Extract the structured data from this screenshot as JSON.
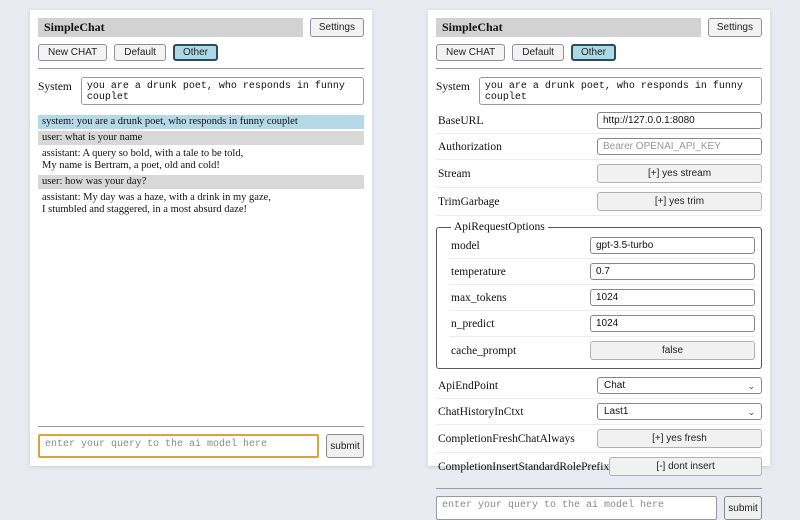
{
  "colors": {
    "page_background": "#e9ebf2",
    "panel_background": "#ffffff",
    "title_bar": "#d2d2d2",
    "active_session_background": "#add8e6",
    "system_message_background": "#b5d9e6",
    "user_message_background": "#d8d8d8",
    "focused_input_border": "#dca23f"
  },
  "header": {
    "title": "SimpleChat",
    "settings_button": "Settings"
  },
  "sessions": {
    "new_chat": "New CHAT",
    "default": "Default",
    "other": "Other"
  },
  "system": {
    "label": "System",
    "prompt": "you are a drunk poet, who responds in funny couplet"
  },
  "chat": {
    "messages": [
      {
        "role": "system",
        "text": "system: you are a drunk poet, who responds in funny couplet"
      },
      {
        "role": "user",
        "text": "user: what is your name"
      },
      {
        "role": "assistant",
        "text": "assistant: A query so bold, with a tale to be told,\nMy name is Bertram, a poet, old and cold!"
      },
      {
        "role": "user",
        "text": "user: how was your day?"
      },
      {
        "role": "assistant",
        "text": "assistant: My day was a haze, with a drink in my gaze,\nI stumbled and staggered, in a most absurd daze!"
      }
    ]
  },
  "settings": {
    "base_url": {
      "label": "BaseURL",
      "value": "http://127.0.0.1:8080"
    },
    "authorization": {
      "label": "Authorization",
      "placeholder": "Bearer OPENAI_API_KEY"
    },
    "stream": {
      "label": "Stream",
      "button": "[+] yes stream"
    },
    "trim_garbage": {
      "label": "TrimGarbage",
      "button": "[+] yes trim"
    },
    "api_request_options": {
      "legend": "ApiRequestOptions",
      "model": {
        "label": "model",
        "value": "gpt-3.5-turbo"
      },
      "temperature": {
        "label": "temperature",
        "value": "0.7"
      },
      "max_tokens": {
        "label": "max_tokens",
        "value": "1024"
      },
      "n_predict": {
        "label": "n_predict",
        "value": "1024"
      },
      "cache_prompt": {
        "label": "cache_prompt",
        "button": "false"
      }
    },
    "api_endpoint": {
      "label": "ApiEndPoint",
      "value": "Chat"
    },
    "chat_history_in_ctxt": {
      "label": "ChatHistoryInCtxt",
      "value": "Last1"
    },
    "completion_fresh_chat_always": {
      "label": "CompletionFreshChatAlways",
      "button": "[+] yes fresh"
    },
    "completion_insert_standard_role_prefix": {
      "label": "CompletionInsertStandardRolePrefix",
      "button": "[-] dont insert"
    }
  },
  "query": {
    "placeholder": "enter your query to the ai model here",
    "submit": "submit"
  },
  "icons": {
    "chevron_down": "⌄"
  }
}
